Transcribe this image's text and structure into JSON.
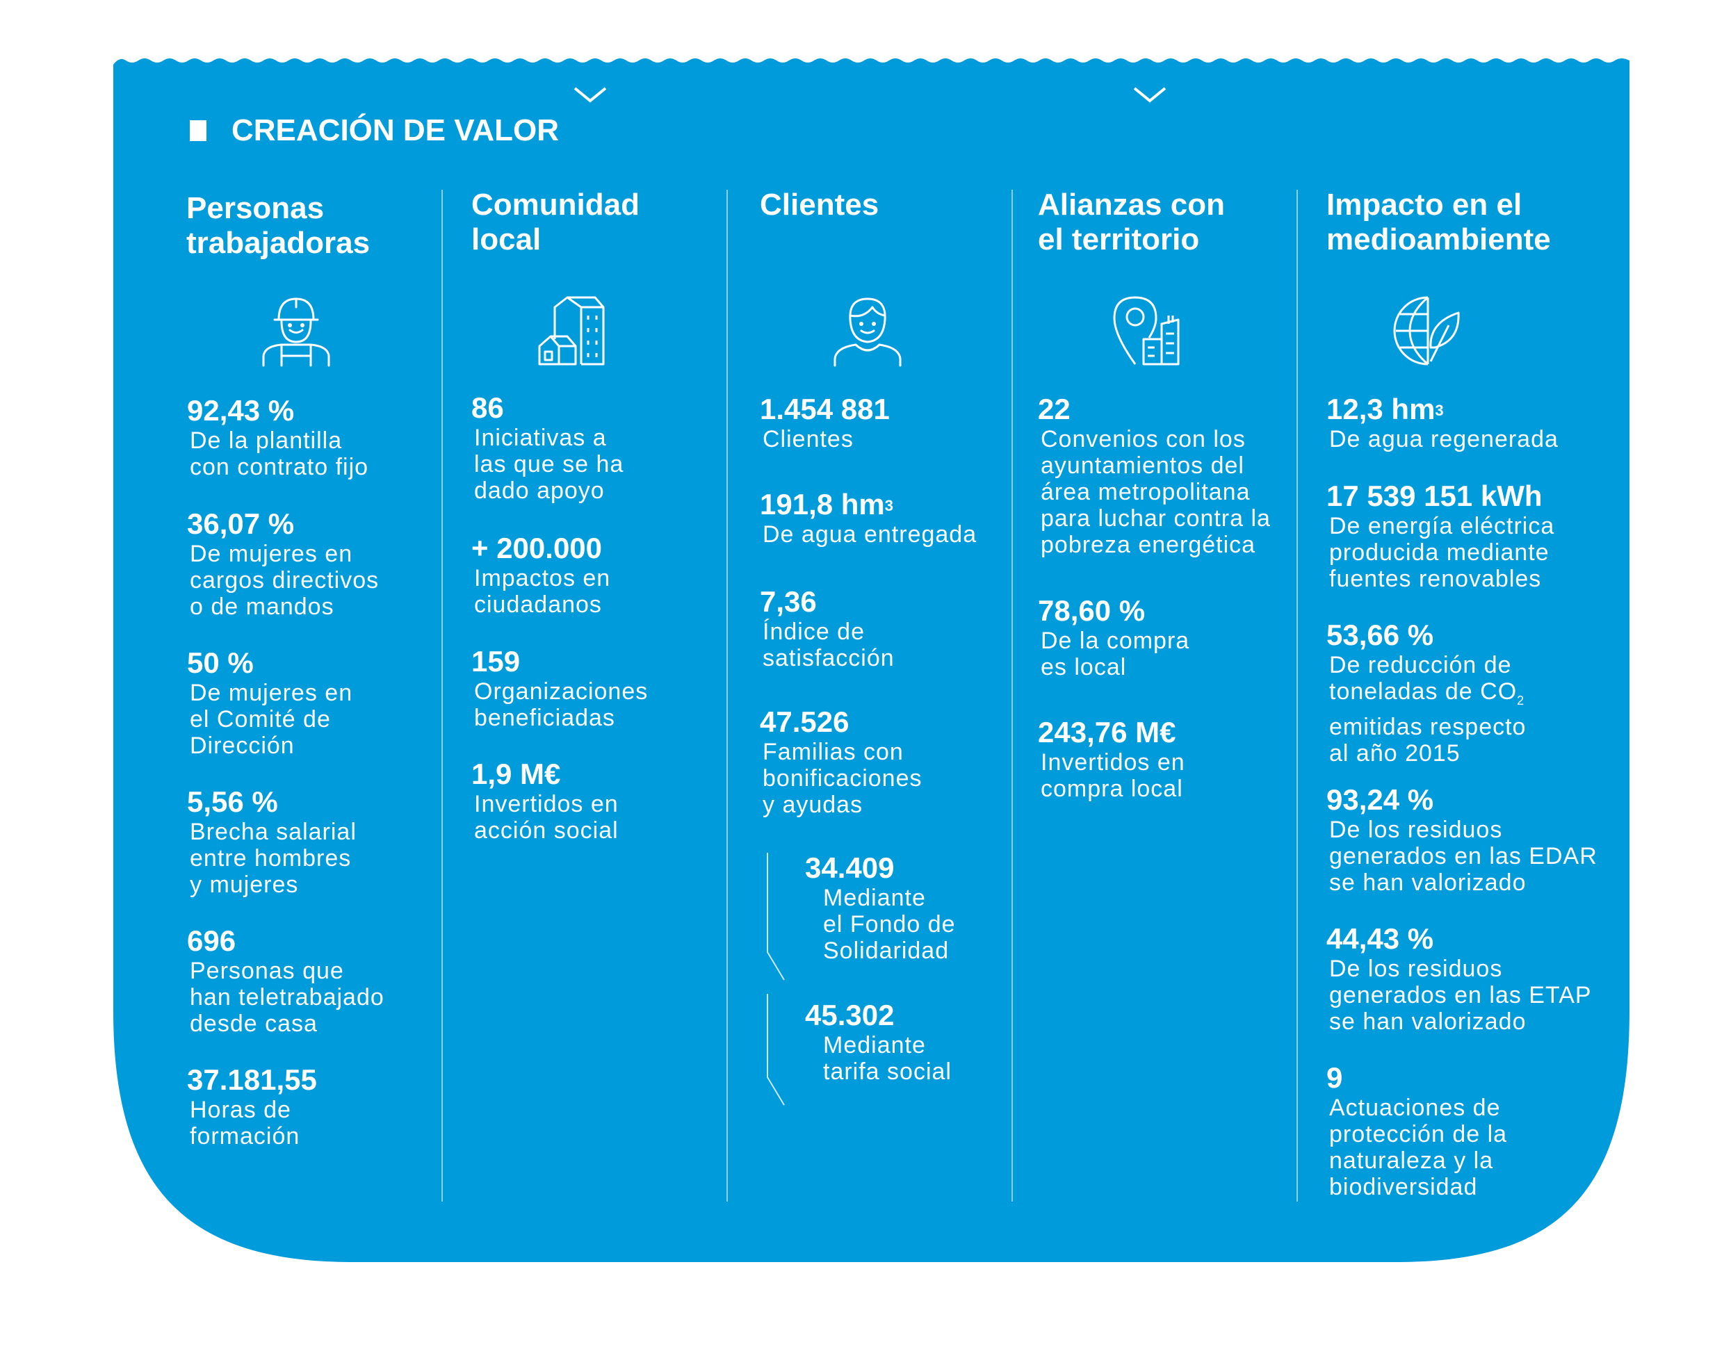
{
  "section": {
    "title": "CREACIÓN DE VALOR"
  },
  "colors": {
    "panel": "#009bdb",
    "text": "#ffffff"
  },
  "columns": [
    {
      "title": "Personas\ntrabajadoras",
      "icon": "worker-icon",
      "stats": [
        {
          "value": "92,43 %",
          "desc": "De la plantilla\ncon contrato fijo"
        },
        {
          "value": "36,07 %",
          "desc": "De mujeres en\ncargos directivos\no de mandos"
        },
        {
          "value": "50 %",
          "desc": "De mujeres en\nel Comité de\nDirección"
        },
        {
          "value": "5,56 %",
          "desc": "Brecha salarial\nentre hombres\ny mujeres"
        },
        {
          "value": "696",
          "desc": "Personas que\nhan teletrabajado\ndesde casa"
        },
        {
          "value": "37.181,55",
          "desc": "Horas de\nformación"
        }
      ]
    },
    {
      "title": "Comunidad\nlocal",
      "icon": "buildings-icon",
      "stats": [
        {
          "value": "86",
          "desc": "Iniciativas a\nlas que se ha\ndado apoyo"
        },
        {
          "value": "+ 200.000",
          "desc": "Impactos en\nciudadanos"
        },
        {
          "value": "159",
          "desc": "Organizaciones\nbeneficiadas"
        },
        {
          "value": "1,9 M€",
          "desc": "Invertidos en\nacción social"
        }
      ]
    },
    {
      "title": "Clientes",
      "icon": "person-icon",
      "stats": [
        {
          "value": "1.454 881",
          "desc": "Clientes"
        },
        {
          "value": "191,8 hm",
          "unit_sup": "3",
          "desc": "De agua entregada"
        },
        {
          "value": "7,36",
          "desc": "Índice de\nsatisfacción"
        },
        {
          "value": "47.526",
          "desc": "Familias con\nbonificaciones\ny ayudas"
        }
      ],
      "sub_stats": [
        {
          "value": "34.409",
          "desc": "Mediante\nel Fondo de\nSolidaridad"
        },
        {
          "value": "45.302",
          "desc": "Mediante\ntarifa social"
        }
      ]
    },
    {
      "title": "Alianzas con\nel territorio",
      "icon": "location-building-icon",
      "stats": [
        {
          "value": "22",
          "desc": "Convenios con los\nayuntamientos del\nárea metropolitana\npara luchar contra la\npobreza energética"
        },
        {
          "value": "78,60 %",
          "desc": "De la compra\nes local"
        },
        {
          "value": "243,76 M€",
          "desc": "Invertidos en\ncompra local"
        }
      ]
    },
    {
      "title": "Impacto en el\nmedioambiente",
      "icon": "globe-leaf-icon",
      "stats": [
        {
          "value": "12,3 hm",
          "unit_sup": "3",
          "desc": "De agua regenerada"
        },
        {
          "value": "17 539 151 kWh",
          "desc": "De energía eléctrica\nproducida mediante\nfuentes renovables"
        },
        {
          "value": "53,66 %",
          "desc_a": "De reducción de\ntoneladas de CO",
          "desc_sub": "2",
          "desc_b": "\nemitidas respecto\nal año 2015"
        },
        {
          "value": "93,24 %",
          "desc": "De los residuos\ngenerados en las EDAR\nse han valorizado"
        },
        {
          "value": "44,43 %",
          "desc": "De los residuos\ngenerados en las ETAP\nse han valorizado"
        },
        {
          "value": "9",
          "desc": "Actuaciones de\nprotección de la\nnaturaleza y la\nbiodiversidad"
        }
      ]
    }
  ]
}
